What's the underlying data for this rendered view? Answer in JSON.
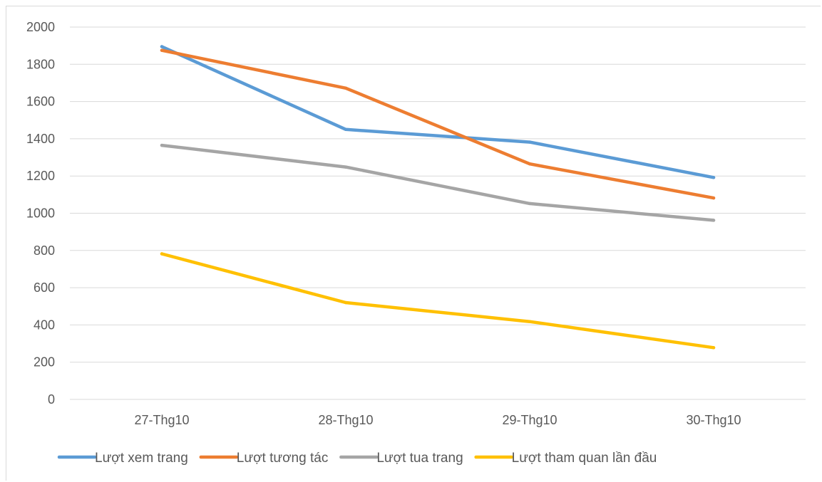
{
  "chart_data": {
    "type": "line",
    "title": "",
    "xlabel": "",
    "ylabel": "",
    "categories": [
      "27-Thg10",
      "28-Thg10",
      "29-Thg10",
      "30-Thg10"
    ],
    "ylim": [
      0,
      2000
    ],
    "yticks": [
      0,
      200,
      400,
      600,
      800,
      1000,
      1200,
      1400,
      1600,
      1800,
      2000
    ],
    "grid": true,
    "legend_position": "bottom",
    "series": [
      {
        "name": "Lượt xem trang",
        "color": "#5b9bd5",
        "values": [
          1895,
          1450,
          1382,
          1192
        ]
      },
      {
        "name": "Lượt tương tác",
        "color": "#ed7d31",
        "values": [
          1875,
          1672,
          1265,
          1082
        ]
      },
      {
        "name": "Lượt tua trang",
        "color": "#a5a5a5",
        "values": [
          1365,
          1248,
          1052,
          962
        ]
      },
      {
        "name": "Lượt tham quan lần đầu",
        "color": "#ffc000",
        "values": [
          782,
          520,
          418,
          278
        ]
      }
    ]
  }
}
